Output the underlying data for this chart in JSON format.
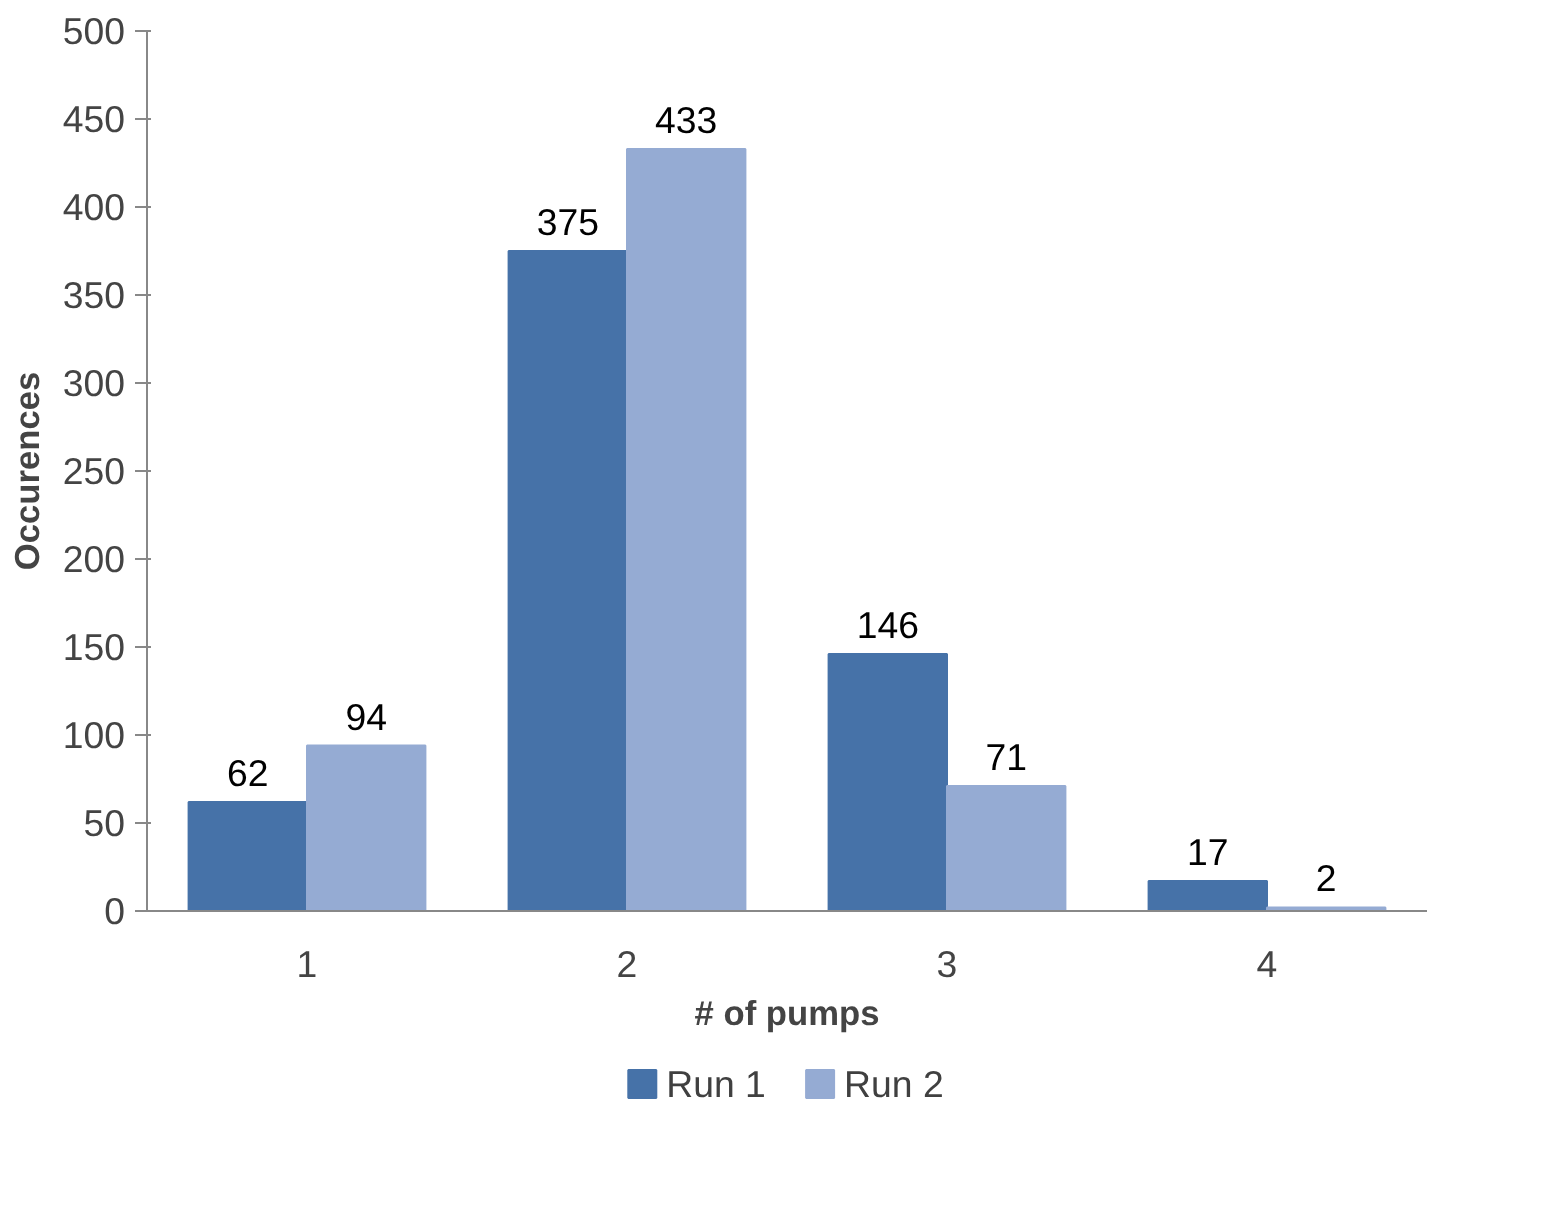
{
  "chart_data": {
    "type": "bar",
    "xlabel": "# of pumps",
    "ylabel": "Occurences",
    "categories": [
      "1",
      "2",
      "3",
      "4"
    ],
    "series": [
      {
        "name": "Run 1",
        "color": "#4672a8",
        "values": [
          62,
          375,
          146,
          17
        ]
      },
      {
        "name": "Run 2",
        "color": "#95abd3",
        "values": [
          94,
          433,
          71,
          2
        ]
      }
    ],
    "ylim": [
      0,
      500
    ],
    "yticks": [
      0,
      50,
      100,
      150,
      200,
      250,
      300,
      350,
      400,
      450,
      500
    ],
    "grid": false,
    "legend": "bottom",
    "data_labels": true
  }
}
